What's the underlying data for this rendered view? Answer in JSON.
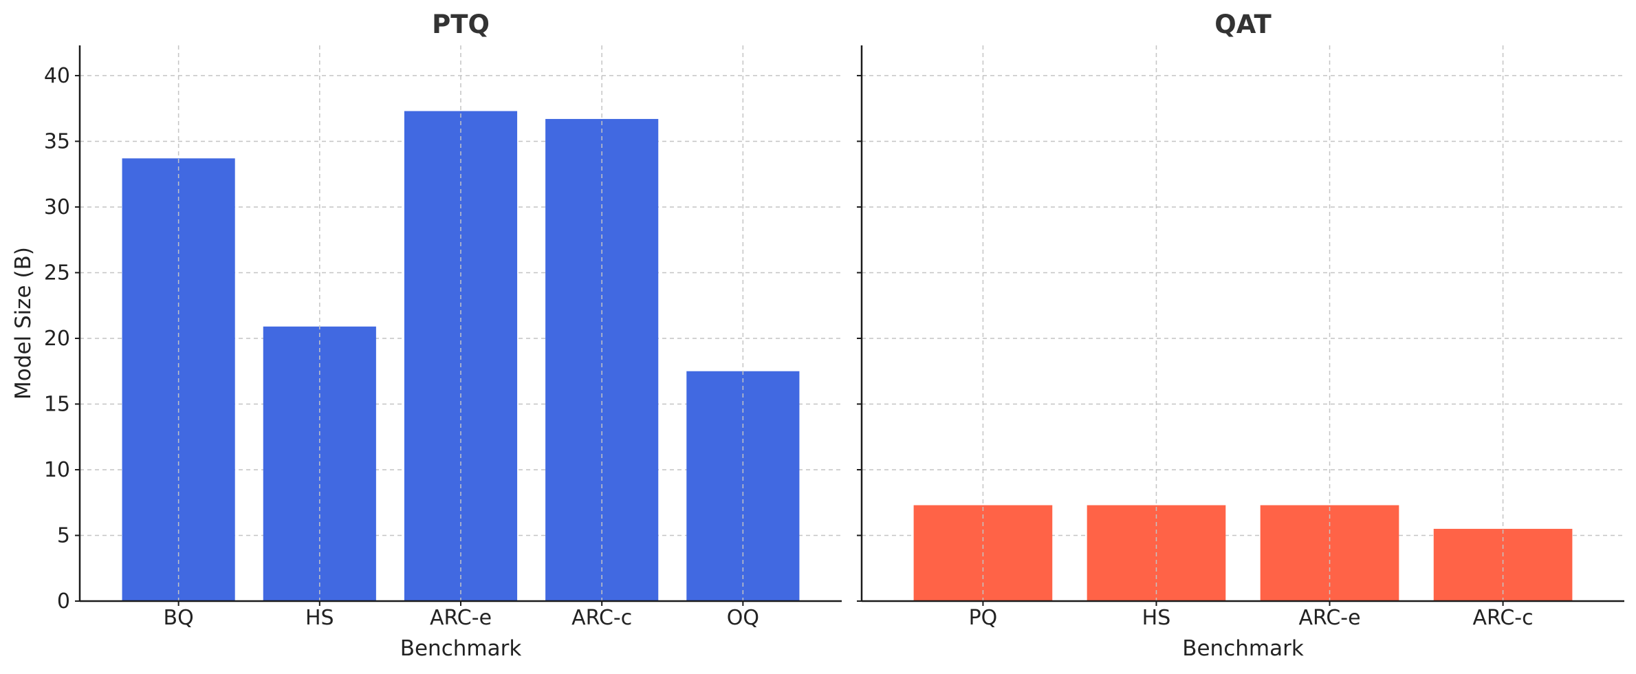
{
  "chart_data": [
    {
      "type": "bar",
      "title": "PTQ",
      "xlabel": "Benchmark",
      "ylabel": "Model Size (B)",
      "categories": [
        "BQ",
        "HS",
        "ARC-e",
        "ARC-c",
        "OQ"
      ],
      "values": [
        33.7,
        20.9,
        37.3,
        36.7,
        17.5
      ],
      "color": "#4169E1",
      "ylim": [
        0,
        42.3
      ],
      "yticks": [
        0,
        5,
        10,
        15,
        20,
        25,
        30,
        35,
        40
      ],
      "grid": true
    },
    {
      "type": "bar",
      "title": "QAT",
      "xlabel": "Benchmark",
      "ylabel": "",
      "categories": [
        "PQ",
        "HS",
        "ARC-e",
        "ARC-c"
      ],
      "values": [
        7.3,
        7.3,
        7.3,
        5.5
      ],
      "color": "#FF6347",
      "ylim": [
        0,
        42.3
      ],
      "yticks": [
        0,
        5,
        10,
        15,
        20,
        25,
        30,
        35,
        40
      ],
      "grid": true
    }
  ]
}
